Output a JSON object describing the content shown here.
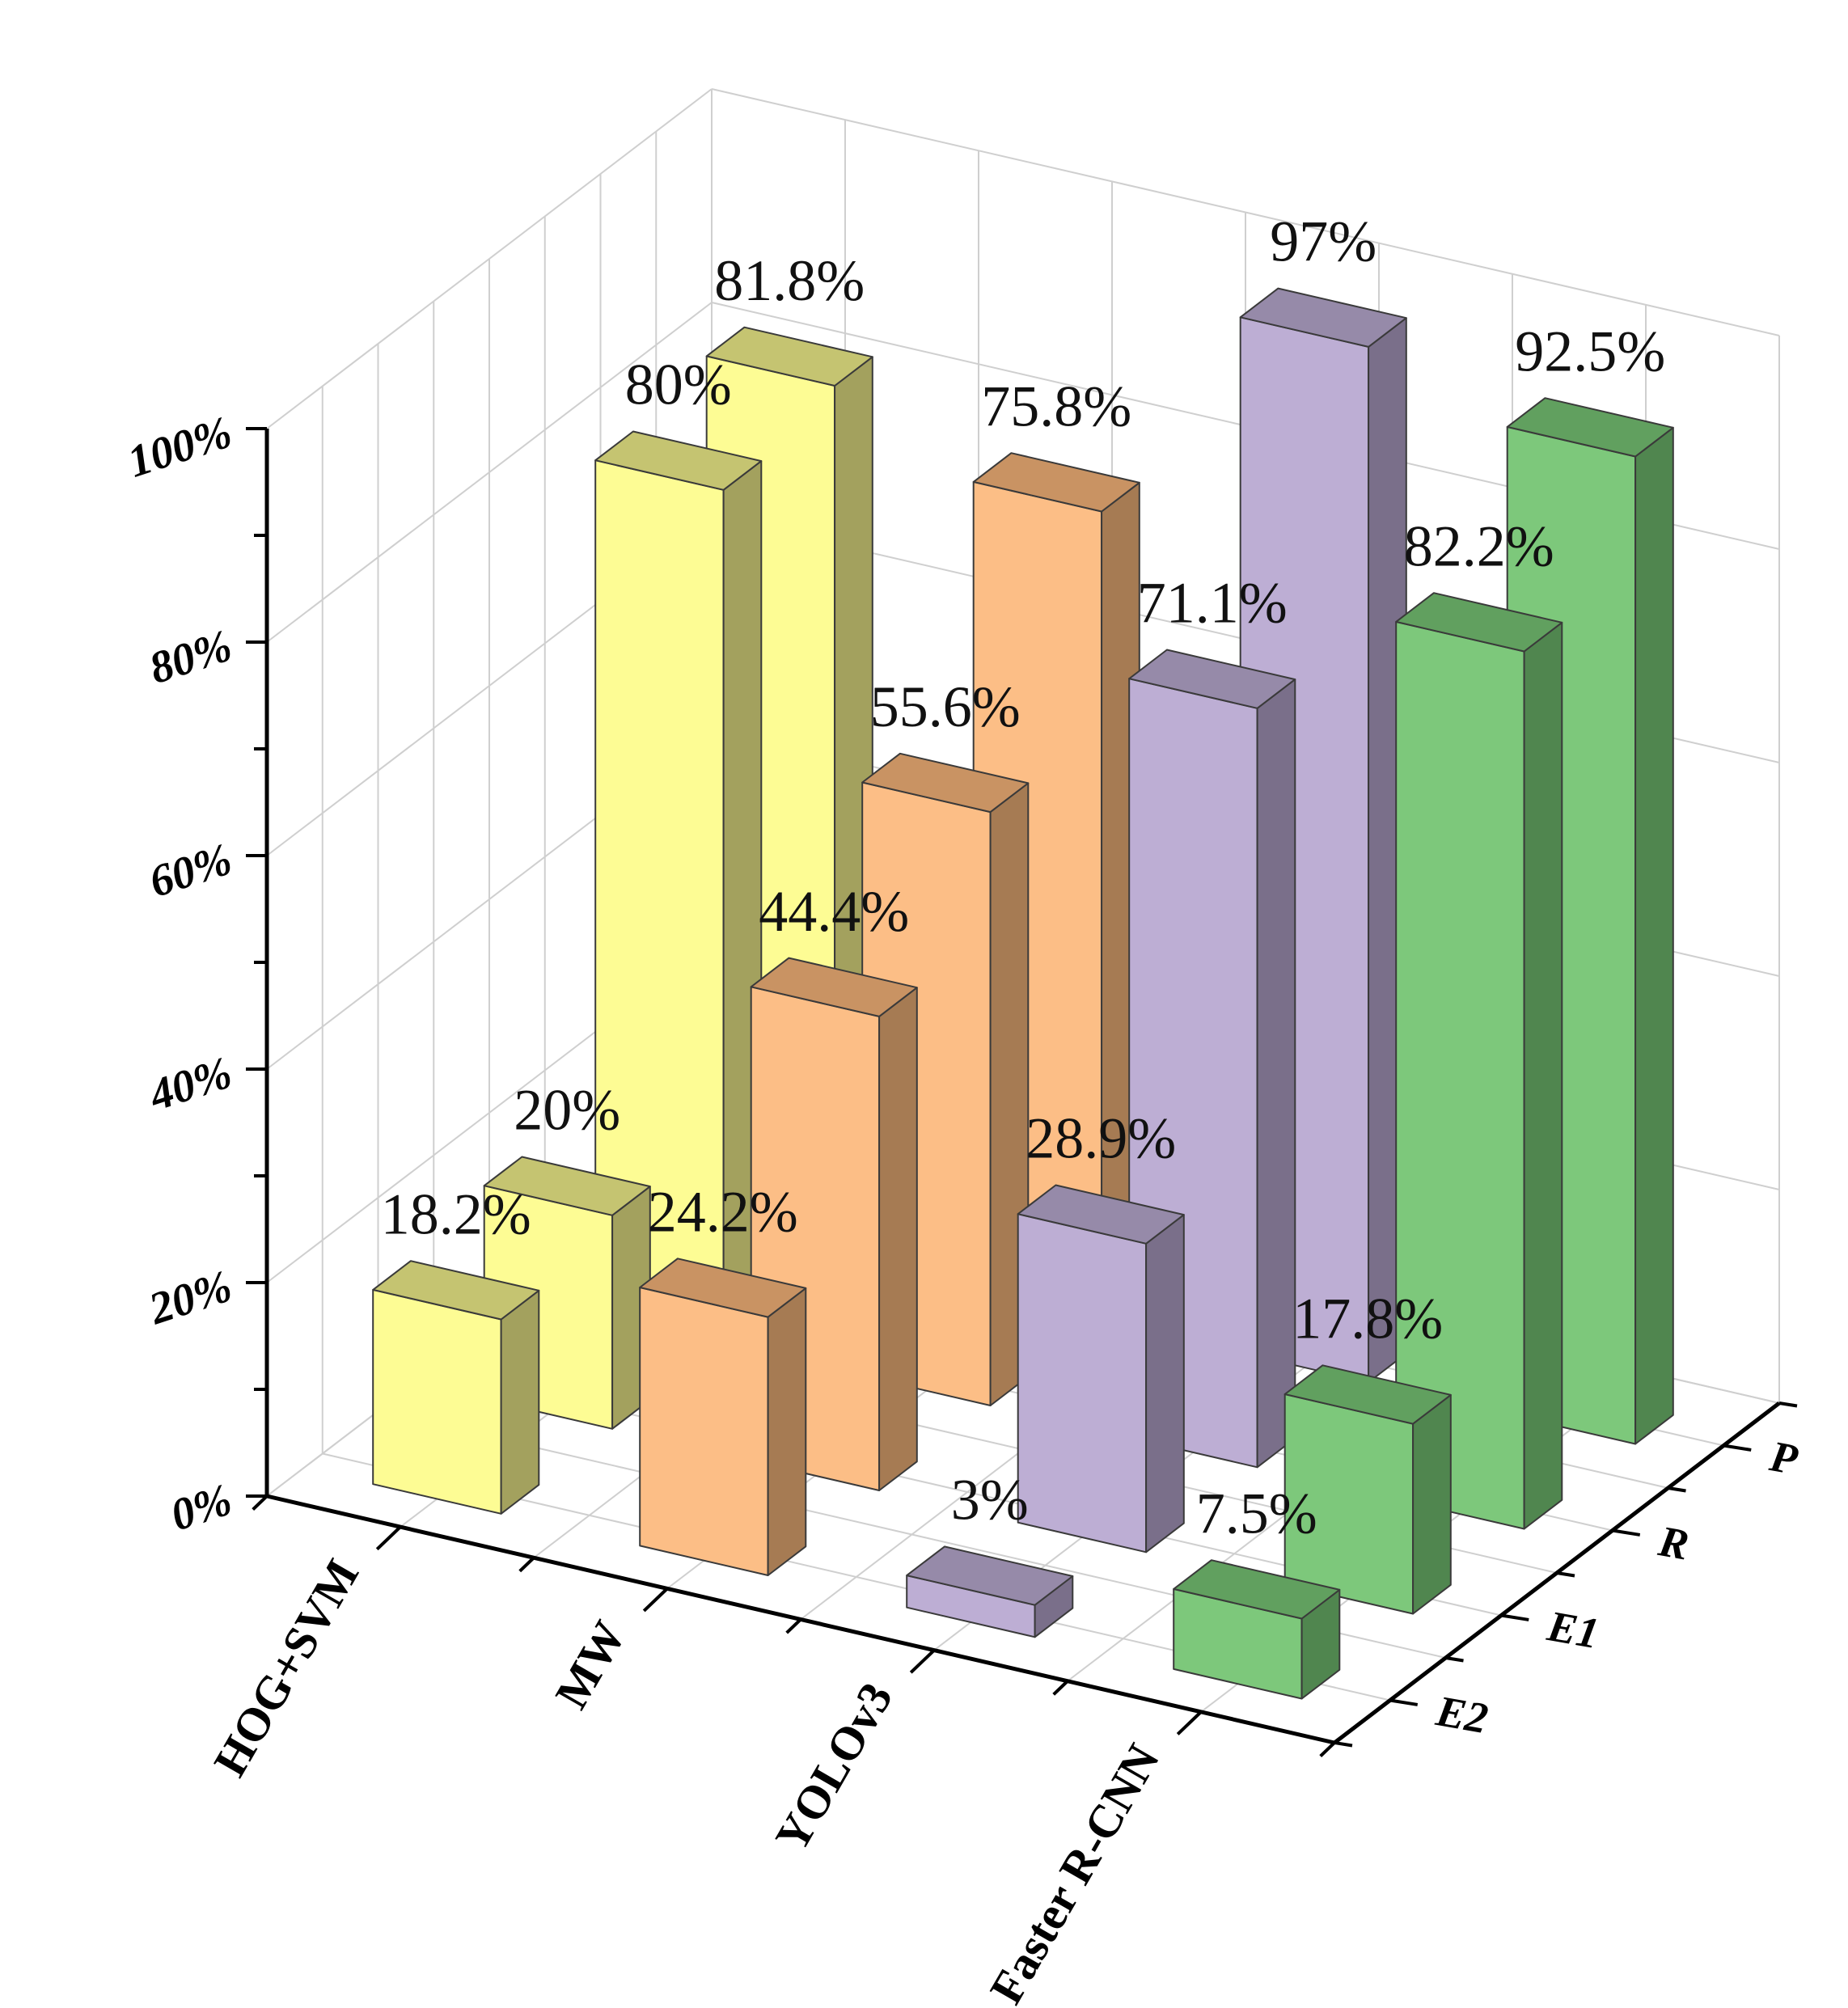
{
  "chart_data": {
    "type": "bar3d",
    "title": "",
    "categories": [
      "HOG+SVM",
      "MW",
      "YOLOv3",
      "Faster R-CNN"
    ],
    "series": [
      {
        "name": "P",
        "values": [
          81.8,
          75.8,
          97,
          92.5
        ]
      },
      {
        "name": "R",
        "values": [
          80,
          55.6,
          71.1,
          82.2
        ]
      },
      {
        "name": "E1",
        "values": [
          20,
          44.4,
          28.9,
          17.8
        ]
      },
      {
        "name": "E2",
        "values": [
          18.2,
          24.2,
          3,
          7.5
        ]
      }
    ],
    "data_labels": [
      [
        "81.8%",
        "75.8%",
        "97%",
        "92.5%"
      ],
      [
        "80%",
        "55.6%",
        "71.1%",
        "82.2%"
      ],
      [
        "20%",
        "44.4%",
        "28.9%",
        "17.8%"
      ],
      [
        "18.2%",
        "24.2%",
        "3%",
        "7.5%"
      ]
    ],
    "z_ticks": [
      "0%",
      "20%",
      "40%",
      "60%",
      "80%",
      "100%"
    ],
    "z_values": [
      0,
      20,
      40,
      60,
      80,
      100
    ],
    "zlim": [
      0,
      100
    ],
    "grid": true,
    "colors": {
      "HOG+SVM": {
        "front": "#fdfc94",
        "side": "#a3a15e",
        "top": "#c5c471"
      },
      "MW": {
        "front": "#fcbe86",
        "side": "#a67b53",
        "top": "#c99363"
      },
      "YOLOv3": {
        "front": "#bdaed4",
        "side": "#7a6f8a",
        "top": "#968aa9"
      },
      "Faster R-CNN": {
        "front": "#7dc87b",
        "side": "#50864f",
        "top": "#61a05f"
      }
    }
  }
}
